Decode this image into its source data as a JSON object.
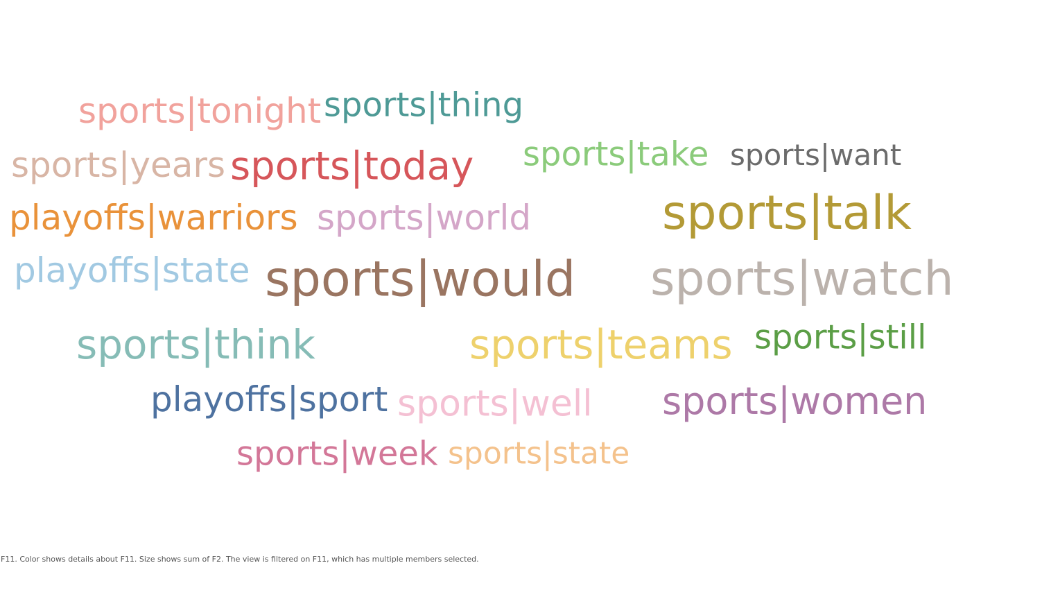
{
  "chart_data": {
    "type": "word-cloud",
    "size_measure": "sum of F2",
    "color_measure": "F11",
    "words": [
      {
        "text": "sports|tonight",
        "color": "#F1A29C"
      },
      {
        "text": "sports|thing",
        "color": "#4E9A96"
      },
      {
        "text": "sports|years",
        "color": "#D8B5A5"
      },
      {
        "text": "sports|today",
        "color": "#D6565A"
      },
      {
        "text": "sports|take",
        "color": "#8BCB7B"
      },
      {
        "text": "sports|want",
        "color": "#6B6B6B"
      },
      {
        "text": "playoffs|warriors",
        "color": "#E9923A"
      },
      {
        "text": "sports|world",
        "color": "#D4A6C8"
      },
      {
        "text": "sports|talk",
        "color": "#B39A36"
      },
      {
        "text": "playoffs|state",
        "color": "#A1C9E2"
      },
      {
        "text": "sports|would",
        "color": "#9A7561"
      },
      {
        "text": "sports|watch",
        "color": "#BBB2AC"
      },
      {
        "text": "sports|think",
        "color": "#86BCB6"
      },
      {
        "text": "sports|teams",
        "color": "#EED16C"
      },
      {
        "text": "sports|still",
        "color": "#5B9E46"
      },
      {
        "text": "playoffs|sport",
        "color": "#4E72A0"
      },
      {
        "text": "sports|well",
        "color": "#F4C0D3"
      },
      {
        "text": "sports|women",
        "color": "#AD79A7"
      },
      {
        "text": "sports|week",
        "color": "#D37798"
      },
      {
        "text": "sports|state",
        "color": "#F4C28C"
      }
    ]
  },
  "caption": "F11.  Color shows details about F11.  Size shows sum of F2. The view is filtered on F11, which has multiple members selected."
}
